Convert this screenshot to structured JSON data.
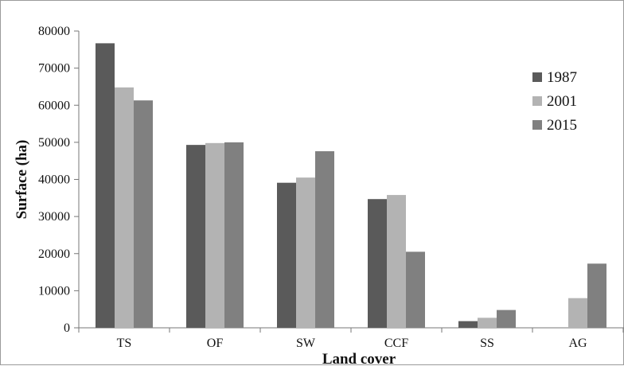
{
  "chart_data": {
    "type": "bar",
    "title": "",
    "xlabel": "Land cover",
    "ylabel": "Surface (ha)",
    "ylim": [
      0,
      80000
    ],
    "yticks": [
      0,
      10000,
      20000,
      30000,
      40000,
      50000,
      60000,
      70000,
      80000
    ],
    "categories": [
      "TS",
      "OF",
      "SW",
      "CCF",
      "SS",
      "AG"
    ],
    "series": [
      {
        "name": "1987",
        "color": "#5a5a5a",
        "values": [
          76700,
          49300,
          39100,
          34700,
          1800,
          0
        ]
      },
      {
        "name": "2001",
        "color": "#b3b3b3",
        "values": [
          64800,
          49800,
          40500,
          35800,
          2700,
          8000
        ]
      },
      {
        "name": "2015",
        "color": "#808080",
        "values": [
          61300,
          50000,
          47600,
          20500,
          4800,
          17300
        ]
      }
    ],
    "legend_position": "right",
    "grid": false
  }
}
